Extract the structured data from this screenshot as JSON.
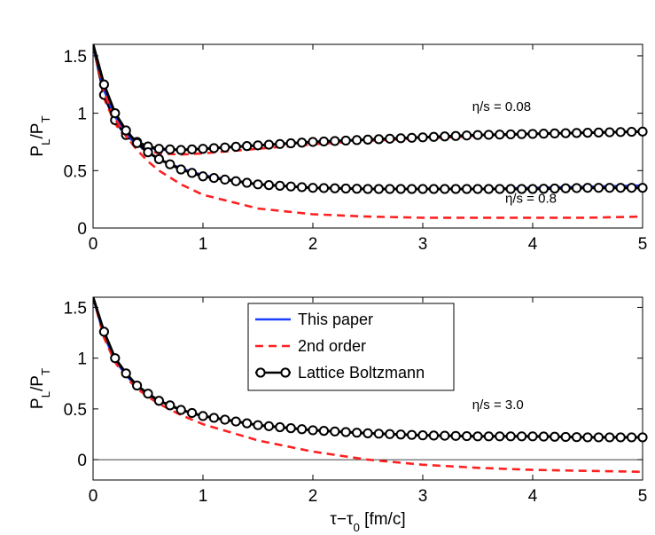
{
  "chart_data": [
    {
      "type": "line",
      "panel": "top",
      "ylabel": "P_L/P_T",
      "xlabel": "",
      "xlim": [
        0,
        5
      ],
      "ylim": [
        0,
        1.6
      ],
      "xticks": [
        "0",
        "1",
        "2",
        "3",
        "4",
        "5"
      ],
      "yticks": [
        "0",
        "0.5",
        "1",
        "1.5"
      ],
      "annotations": [
        {
          "text": "η/s = 0.08",
          "x": 3.45,
          "y": 1.02
        },
        {
          "text": "η/s = 0.8",
          "x": 3.75,
          "y": 0.22
        }
      ],
      "series": [
        {
          "name": "This paper",
          "eta_s": "0.08",
          "style": "solid",
          "color": "#1f3fff",
          "x": [
            0,
            0.1,
            0.2,
            0.3,
            0.4,
            0.5,
            0.6,
            0.8,
            1.0,
            1.5,
            2.0,
            2.5,
            3.0,
            3.5,
            4.0,
            4.5,
            5.0
          ],
          "y": [
            1.6,
            1.15,
            0.93,
            0.8,
            0.74,
            0.7,
            0.68,
            0.68,
            0.69,
            0.72,
            0.75,
            0.77,
            0.79,
            0.81,
            0.82,
            0.83,
            0.84
          ]
        },
        {
          "name": "2nd order",
          "eta_s": "0.08",
          "style": "dashed",
          "color": "#ff2020",
          "x": [
            0,
            0.1,
            0.2,
            0.3,
            0.4,
            0.5,
            0.6,
            0.8,
            1.0,
            1.5,
            2.0,
            2.5,
            3.0,
            3.5,
            4.0,
            4.5,
            5.0
          ],
          "y": [
            1.6,
            1.13,
            0.91,
            0.78,
            0.71,
            0.67,
            0.65,
            0.64,
            0.65,
            0.69,
            0.73,
            0.76,
            0.78,
            0.8,
            0.82,
            0.83,
            0.84
          ]
        },
        {
          "name": "Lattice Boltzmann",
          "eta_s": "0.08",
          "style": "solid-circles",
          "color": "#000000",
          "x": [
            0,
            0.1,
            0.2,
            0.3,
            0.4,
            0.5,
            0.6,
            0.8,
            1.0,
            1.5,
            2.0,
            2.5,
            3.0,
            3.5,
            4.0,
            4.5,
            5.0
          ],
          "y": [
            1.6,
            1.16,
            0.94,
            0.81,
            0.75,
            0.71,
            0.69,
            0.68,
            0.69,
            0.72,
            0.75,
            0.77,
            0.79,
            0.81,
            0.82,
            0.83,
            0.84
          ]
        },
        {
          "name": "This paper",
          "eta_s": "0.8",
          "style": "solid",
          "color": "#1f3fff",
          "x": [
            0,
            0.1,
            0.2,
            0.3,
            0.4,
            0.5,
            0.6,
            0.8,
            1.0,
            1.5,
            2.0,
            2.5,
            3.0,
            3.5,
            4.0,
            4.5,
            5.0
          ],
          "y": [
            1.6,
            1.2,
            0.97,
            0.83,
            0.73,
            0.66,
            0.6,
            0.52,
            0.46,
            0.38,
            0.35,
            0.34,
            0.34,
            0.34,
            0.35,
            0.36,
            0.37
          ]
        },
        {
          "name": "2nd order",
          "eta_s": "0.8",
          "style": "dashed",
          "color": "#ff2020",
          "x": [
            0,
            0.1,
            0.2,
            0.3,
            0.4,
            0.5,
            0.6,
            0.8,
            1.0,
            1.5,
            2.0,
            2.5,
            3.0,
            3.5,
            4.0,
            4.5,
            5.0
          ],
          "y": [
            1.6,
            1.18,
            0.95,
            0.8,
            0.68,
            0.58,
            0.5,
            0.38,
            0.29,
            0.17,
            0.12,
            0.1,
            0.09,
            0.09,
            0.09,
            0.09,
            0.1
          ]
        },
        {
          "name": "Lattice Boltzmann",
          "eta_s": "0.8",
          "style": "solid-circles",
          "color": "#000000",
          "x": [
            0,
            0.1,
            0.2,
            0.3,
            0.4,
            0.5,
            0.6,
            0.8,
            1.0,
            1.5,
            2.0,
            2.5,
            3.0,
            3.5,
            4.0,
            4.5,
            5.0
          ],
          "y": [
            1.6,
            1.25,
            1.0,
            0.85,
            0.74,
            0.66,
            0.6,
            0.51,
            0.45,
            0.38,
            0.35,
            0.34,
            0.34,
            0.34,
            0.34,
            0.35,
            0.35
          ]
        }
      ]
    },
    {
      "type": "line",
      "panel": "bottom",
      "ylabel": "P_L/P_T",
      "xlabel": "τ−τ_0 [fm/c]",
      "xlim": [
        0,
        5
      ],
      "ylim": [
        -0.2,
        1.6
      ],
      "xticks": [
        "0",
        "1",
        "2",
        "3",
        "4",
        "5"
      ],
      "yticks": [
        "0",
        "0.5",
        "1",
        "1.5"
      ],
      "zero_line": true,
      "annotations": [
        {
          "text": "η/s = 3.0",
          "x": 3.45,
          "y": 0.5
        }
      ],
      "legend": {
        "placement": "top-center",
        "entries": [
          "This paper",
          "2nd order",
          "Lattice Boltzmann"
        ]
      },
      "series": [
        {
          "name": "This paper",
          "eta_s": "3.0",
          "style": "solid",
          "color": "#1f3fff",
          "x": [
            0,
            0.1,
            0.2,
            0.3,
            0.4,
            0.5,
            0.6,
            0.8,
            1.0,
            1.5,
            2.0,
            2.5,
            3.0,
            3.5,
            4.0,
            4.5,
            5.0
          ],
          "y": [
            1.6,
            1.22,
            0.98,
            0.83,
            0.72,
            0.64,
            0.58,
            0.49,
            0.43,
            0.34,
            0.29,
            0.26,
            0.24,
            0.23,
            0.23,
            0.22,
            0.22
          ]
        },
        {
          "name": "2nd order",
          "eta_s": "3.0",
          "style": "dashed",
          "color": "#ff2020",
          "x": [
            0,
            0.1,
            0.2,
            0.3,
            0.4,
            0.5,
            0.6,
            0.8,
            1.0,
            1.5,
            2.0,
            2.5,
            3.0,
            3.5,
            4.0,
            4.5,
            5.0
          ],
          "y": [
            1.6,
            1.2,
            0.96,
            0.81,
            0.7,
            0.62,
            0.55,
            0.44,
            0.35,
            0.19,
            0.08,
            0.0,
            -0.05,
            -0.08,
            -0.1,
            -0.11,
            -0.12
          ]
        },
        {
          "name": "Lattice Boltzmann",
          "eta_s": "3.0",
          "style": "solid-circles",
          "color": "#000000",
          "x": [
            0,
            0.1,
            0.2,
            0.3,
            0.4,
            0.5,
            0.6,
            0.8,
            1.0,
            1.5,
            2.0,
            2.5,
            3.0,
            3.5,
            4.0,
            4.5,
            5.0
          ],
          "y": [
            1.6,
            1.26,
            1.0,
            0.85,
            0.73,
            0.65,
            0.58,
            0.49,
            0.43,
            0.34,
            0.29,
            0.26,
            0.24,
            0.23,
            0.23,
            0.22,
            0.22
          ]
        }
      ]
    }
  ]
}
